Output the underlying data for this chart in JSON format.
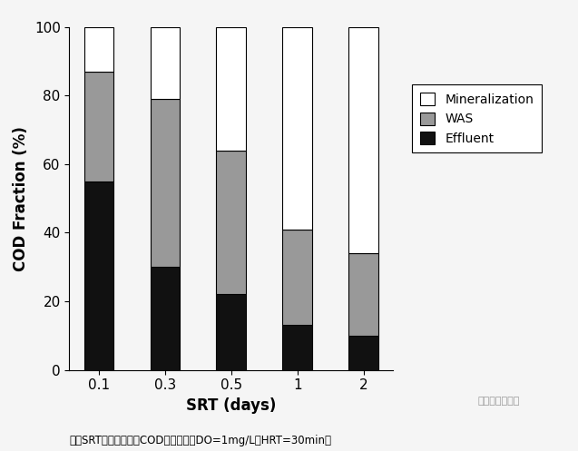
{
  "categories": [
    "0.1",
    "0.3",
    "0.5",
    "1",
    "2"
  ],
  "effluent": [
    55,
    30,
    22,
    13,
    10
  ],
  "was": [
    32,
    49,
    42,
    28,
    24
  ],
  "mineralization": [
    13,
    21,
    36,
    59,
    66
  ],
  "colors": {
    "effluent": "#111111",
    "was": "#999999",
    "mineralization": "#ffffff"
  },
  "ylabel": "COD Fraction (%)",
  "xlabel": "SRT (days)",
  "ylim": [
    0,
    100
  ],
  "yticks": [
    0,
    20,
    40,
    60,
    80,
    100
  ],
  "legend_labels": [
    "Mineralization",
    "WAS",
    "Effluent"
  ],
  "subtitle": "不同SRT条件下，进水COD形态转化（DO=1mg/L，HRT=30min）",
  "watermark": "水业碳中和资讯",
  "bar_width": 0.45,
  "background_color": "#f5f5f5",
  "axis_fontsize": 12,
  "tick_fontsize": 11,
  "legend_fontsize": 10
}
